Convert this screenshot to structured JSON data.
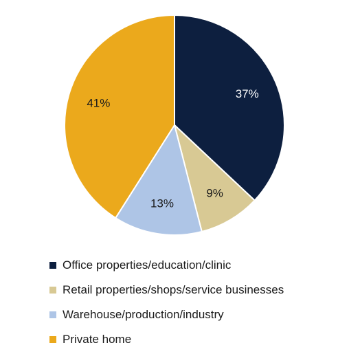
{
  "chart_data": {
    "type": "pie",
    "categories": [
      "Office properties/education/clinic",
      "Retail properties/shops/service businesses",
      "Warehouse/production/industry",
      "Private home"
    ],
    "values": [
      37,
      9,
      13,
      41
    ],
    "value_labels": [
      "37%",
      "9%",
      "13%",
      "41%"
    ],
    "colors": [
      "#0d1f3f",
      "#d8c994",
      "#aec5e6",
      "#eba91c"
    ],
    "start_angle_deg": 0,
    "direction": "clockwise",
    "legend_position": "bottom"
  }
}
